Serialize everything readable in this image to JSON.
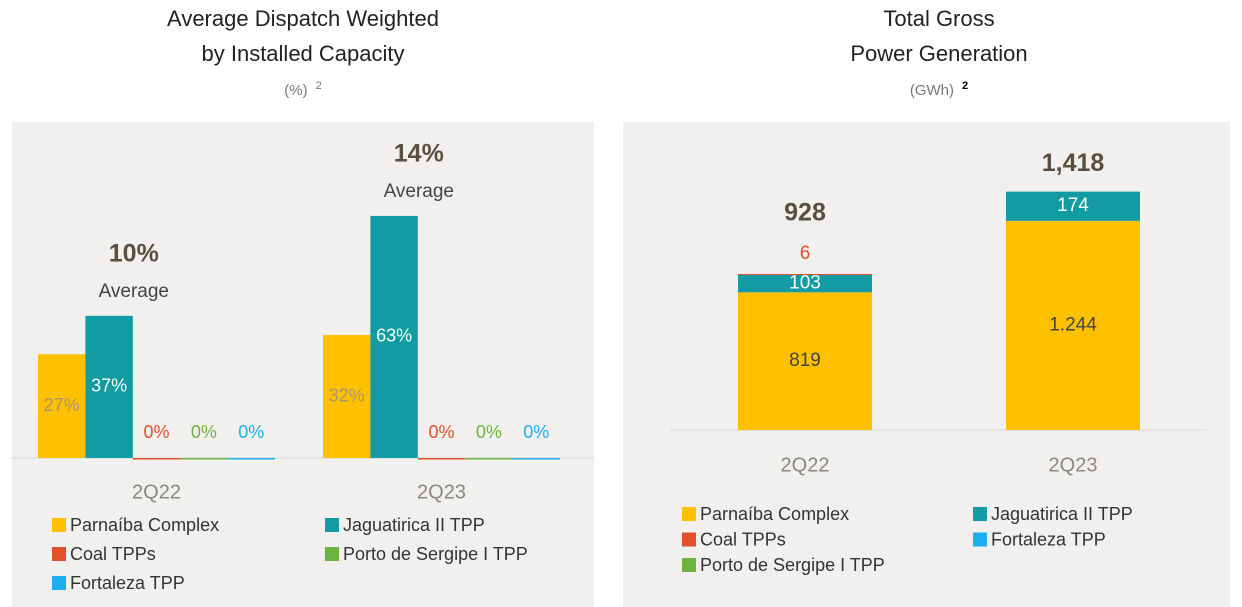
{
  "chart_data": [
    {
      "type": "bar",
      "title": [
        "Average Dispatch Weighted",
        "by Installed Capacity"
      ],
      "subtitle": "(%)",
      "footnote": "2",
      "categories": [
        "2Q22",
        "2Q23"
      ],
      "ylim": [
        0,
        70
      ],
      "series": [
        {
          "name": "Parnaíba Complex",
          "color": "#FFC000",
          "values": [
            27,
            32
          ],
          "value_labels": [
            "27%",
            "32%"
          ]
        },
        {
          "name": "Jaguatirica II TPP",
          "color": "#129BA3",
          "values": [
            37,
            63
          ],
          "value_labels": [
            "37%",
            "63%"
          ]
        },
        {
          "name": "Coal TPPs",
          "color": "#E2512B",
          "values": [
            0,
            0
          ],
          "value_labels": [
            "0%",
            "0%"
          ]
        },
        {
          "name": "Porto de Sergipe I TPP",
          "color": "#6DB33F",
          "values": [
            0,
            0
          ],
          "value_labels": [
            "0%",
            "0%"
          ]
        },
        {
          "name": "Fortaleza TPP",
          "color": "#1CAEEF",
          "values": [
            0,
            0
          ],
          "value_labels": [
            "0%",
            "0%"
          ]
        }
      ],
      "annotations": {
        "values": [
          10,
          14
        ],
        "value_labels": [
          "10%",
          "14%"
        ],
        "label": "Average"
      }
    },
    {
      "type": "stacked_bar",
      "title": [
        "Total Gross",
        "Power Generation"
      ],
      "subtitle": "(GWh)",
      "footnote": "2",
      "categories": [
        "2Q22",
        "2Q23"
      ],
      "ylim": [
        0,
        1600
      ],
      "series": [
        {
          "name": "Parnaíba Complex",
          "color": "#FFC000",
          "values": [
            819,
            1244
          ],
          "value_labels": [
            "819",
            "1.244"
          ]
        },
        {
          "name": "Jaguatirica II TPP",
          "color": "#129BA3",
          "values": [
            103,
            174
          ]
        },
        {
          "name": "Coal TPPs",
          "color": "#E2512B",
          "values": [
            6,
            0
          ]
        },
        {
          "name": "Fortaleza TPP",
          "color": "#1CAEEF",
          "values": [
            0,
            0
          ]
        },
        {
          "name": "Porto de Sergipe I TPP",
          "color": "#6DB33F",
          "values": [
            0,
            0
          ]
        }
      ],
      "totals": {
        "values": [
          928,
          1418
        ],
        "value_labels": [
          "928",
          "1,418"
        ]
      }
    }
  ]
}
